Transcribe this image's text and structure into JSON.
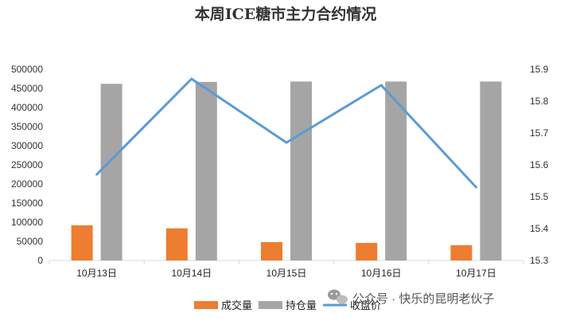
{
  "chart_data": {
    "type": "bar",
    "title": "本周ICE糖市主力合约情况",
    "categories": [
      "10月13日",
      "10月14日",
      "10月15日",
      "10月16日",
      "10月17日"
    ],
    "series": [
      {
        "name": "成交量",
        "type": "bar",
        "axis": "left",
        "color": "#ED7D31",
        "values": [
          92000,
          84000,
          48000,
          46000,
          40000
        ]
      },
      {
        "name": "持仓量",
        "type": "bar",
        "axis": "left",
        "color": "#A5A5A5",
        "values": [
          462000,
          467000,
          468000,
          468000,
          468000
        ]
      },
      {
        "name": "收盘价",
        "type": "line",
        "axis": "right",
        "color": "#5B9BD5",
        "values": [
          15.57,
          15.87,
          15.67,
          15.85,
          15.53
        ]
      }
    ],
    "y_left": {
      "min": 0,
      "max": 500000,
      "ticks": [
        "0",
        "50000",
        "100000",
        "150000",
        "200000",
        "250000",
        "300000",
        "350000",
        "400000",
        "450000",
        "500000"
      ]
    },
    "y_right": {
      "min": 15.3,
      "max": 15.9,
      "ticks": [
        "15.3",
        "15.4",
        "15.5",
        "15.6",
        "15.7",
        "15.8",
        "15.9"
      ]
    },
    "legend_position": "bottom",
    "grid": false
  },
  "watermark": {
    "text": "公众号 · 快乐的昆明老伙子",
    "icon": "wechat-icon"
  }
}
